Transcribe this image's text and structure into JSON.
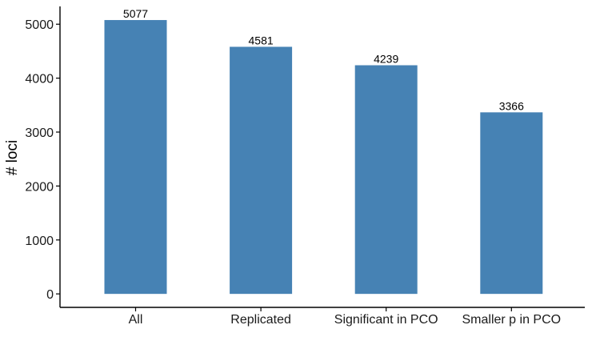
{
  "chart_data": {
    "type": "bar",
    "title": "",
    "xlabel": "",
    "ylabel": "# loci",
    "categories": [
      "All",
      "Replicated",
      "Significant in PCO",
      "Smaller p in PCO"
    ],
    "values": [
      5077,
      4581,
      4239,
      3366
    ],
    "ylim": [
      -250,
      5330
    ],
    "yticks": [
      0,
      1000,
      2000,
      3000,
      4000,
      5000
    ],
    "grid": false,
    "legend": "none",
    "bar_color": "#4682b4",
    "axis_color": "#000000"
  }
}
